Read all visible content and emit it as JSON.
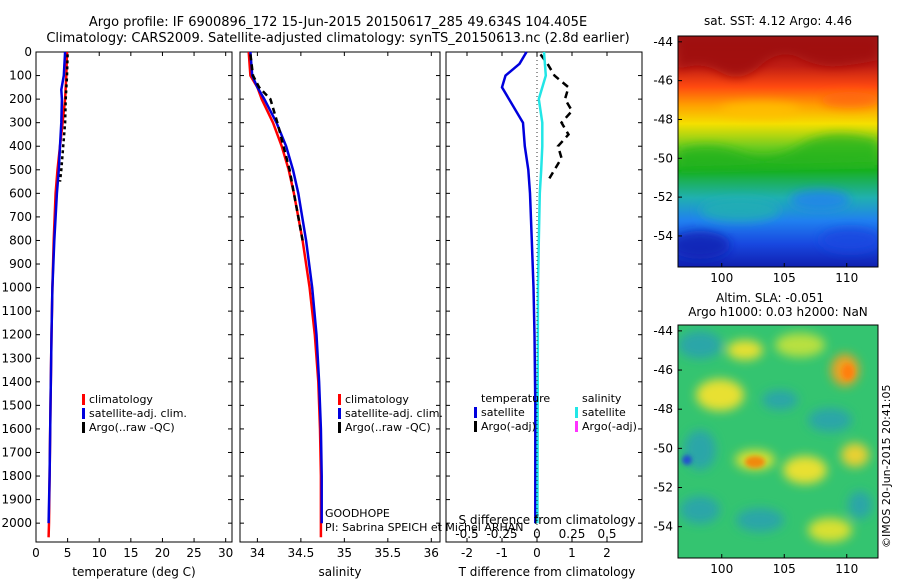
{
  "title_line1": "Argo profile: IF 6900896_172 15-Jun-2015 20150617_285 49.634S 104.405E",
  "title_line2": "Climatology: CARS2009. Satellite-adjusted climatology: synTS_20150613.nc (2.8d earlier)",
  "side_text": "©IMOS 20-Jun-2015 20:41:05",
  "project_text": "GOODHOPE",
  "pi_text": "PI: Sabrina SPEICH et Michel ARHAN",
  "colors": {
    "climatology": "#ff0000",
    "satellite": "#0000dd",
    "argo": "#000000",
    "sal_satellite": "#22e6e6",
    "sal_argo": "#ff33ff"
  },
  "chart_data": [
    {
      "type": "line",
      "xlabel": "temperature (deg C)",
      "xlim": [
        0,
        31
      ],
      "xticks": [
        "0",
        "5",
        "10",
        "15",
        "20",
        "25",
        "30"
      ],
      "ylim": [
        2080,
        0
      ],
      "yticks": [
        "0",
        "100",
        "200",
        "300",
        "400",
        "500",
        "600",
        "700",
        "800",
        "900",
        "1000",
        "1100",
        "1200",
        "1300",
        "1400",
        "1500",
        "1600",
        "1700",
        "1800",
        "1900",
        "2000"
      ],
      "legend": [
        "climatology",
        "satellite-adj. clim.",
        "Argo(..raw -QC)"
      ],
      "series": [
        {
          "name": "climatology",
          "depth": [
            0,
            100,
            200,
            300,
            400,
            500,
            600,
            800,
            1000,
            1200,
            1500,
            1800,
            2000,
            2060
          ],
          "values": [
            4.9,
            4.8,
            4.6,
            4.2,
            3.8,
            3.4,
            3.1,
            2.8,
            2.6,
            2.45,
            2.3,
            2.15,
            2.05,
            2.0
          ]
        },
        {
          "name": "satellite-adj. clim.",
          "depth": [
            0,
            100,
            160,
            200,
            300,
            400,
            500,
            600,
            800,
            1000,
            1200,
            1500,
            1800,
            2000
          ],
          "values": [
            4.6,
            4.4,
            4.0,
            4.1,
            4.0,
            3.8,
            3.6,
            3.3,
            2.9,
            2.6,
            2.45,
            2.3,
            2.15,
            2.0
          ]
        },
        {
          "name": "Argo(..raw -QC)",
          "depth": [
            10,
            100,
            200,
            300,
            400,
            500,
            550
          ],
          "values": [
            5.0,
            4.9,
            4.7,
            4.6,
            4.3,
            4.0,
            3.8
          ]
        }
      ]
    },
    {
      "type": "line",
      "xlabel": "salinity",
      "xlim": [
        33.8,
        36.1
      ],
      "xticks": [
        "34",
        "34.5",
        "35",
        "35.5",
        "36"
      ],
      "ylim": [
        2080,
        0
      ],
      "legend": [
        "climatology",
        "satellite-adj. clim.",
        "Argo(..raw -QC)"
      ],
      "series": [
        {
          "name": "climatology",
          "depth": [
            0,
            100,
            150,
            200,
            300,
            400,
            500,
            600,
            800,
            1000,
            1200,
            1400,
            1600,
            1800,
            2000,
            2060
          ],
          "values": [
            33.9,
            33.92,
            34.0,
            34.05,
            34.18,
            34.28,
            34.36,
            34.42,
            34.52,
            34.6,
            34.66,
            34.7,
            34.72,
            34.73,
            34.73,
            34.73
          ]
        },
        {
          "name": "satellite-adj. clim.",
          "depth": [
            0,
            100,
            150,
            200,
            300,
            400,
            500,
            600,
            800,
            1000,
            1200,
            1400,
            1600,
            1800,
            2000
          ],
          "values": [
            33.92,
            33.94,
            34.0,
            34.08,
            34.22,
            34.33,
            34.41,
            34.47,
            34.56,
            34.63,
            34.68,
            34.71,
            34.73,
            34.74,
            34.74
          ]
        },
        {
          "name": "Argo(..raw -QC)",
          "depth": [
            10,
            100,
            150,
            200,
            300,
            400,
            500,
            600,
            700,
            800
          ],
          "values": [
            33.92,
            33.95,
            34.02,
            34.15,
            34.23,
            34.3,
            34.37,
            34.42,
            34.47,
            34.52
          ]
        }
      ]
    },
    {
      "type": "line",
      "xlabel": "T difference from climatology",
      "xlim": [
        -2.6,
        3.0
      ],
      "xticks": [
        "-2",
        "-1",
        "0",
        "1",
        "2"
      ],
      "x2label": "S difference from climatology",
      "x2ticks": [
        "-0.5",
        "-0.25",
        "0",
        "0.25",
        "0.5"
      ],
      "ylim": [
        2080,
        0
      ],
      "legend_temperature": {
        "title": "temperature",
        "entries": [
          "satellite",
          "Argo(-adj)"
        ]
      },
      "legend_salinity": {
        "title": "salinity",
        "entries": [
          "satellite",
          "Argo(-adj)"
        ]
      },
      "series": [
        {
          "name": "temperature satellite",
          "depth": [
            0,
            50,
            100,
            150,
            200,
            300,
            400,
            500,
            600,
            800,
            1000,
            1200,
            1500,
            1800,
            2000
          ],
          "values": [
            -0.3,
            -0.5,
            -0.9,
            -1.0,
            -0.8,
            -0.4,
            -0.35,
            -0.25,
            -0.2,
            -0.15,
            -0.1,
            -0.07,
            -0.05,
            -0.05,
            -0.05
          ]
        },
        {
          "name": "temperature Argo(-adj)",
          "depth": [
            10,
            50,
            100,
            150,
            200,
            250,
            300,
            350,
            400,
            450,
            500,
            550
          ],
          "values": [
            0.1,
            0.3,
            0.5,
            0.9,
            0.8,
            1.0,
            0.7,
            0.9,
            0.6,
            0.7,
            0.5,
            0.3
          ]
        },
        {
          "name": "salinity satellite",
          "depth": [
            0,
            100,
            200,
            300,
            400,
            500,
            600,
            800,
            1000,
            1500,
            2000
          ],
          "values": [
            0.2,
            0.25,
            0.05,
            0.15,
            0.15,
            0.12,
            0.08,
            0.05,
            0.03,
            0.02,
            0.01
          ]
        }
      ]
    },
    {
      "type": "heatmap",
      "title": "sat. SST: 4.12 Argo: 4.46",
      "xticks": [
        "100",
        "105",
        "110"
      ],
      "yticks": [
        "-44",
        "-46",
        "-48",
        "-50",
        "-52",
        "-54"
      ]
    },
    {
      "type": "heatmap",
      "title_line1": "Altim. SLA: -0.051",
      "title_line2": "Argo h1000: 0.03 h2000: NaN",
      "xticks": [
        "100",
        "105",
        "110"
      ],
      "yticks": [
        "-44",
        "-46",
        "-48",
        "-50",
        "-52",
        "-54"
      ]
    }
  ]
}
